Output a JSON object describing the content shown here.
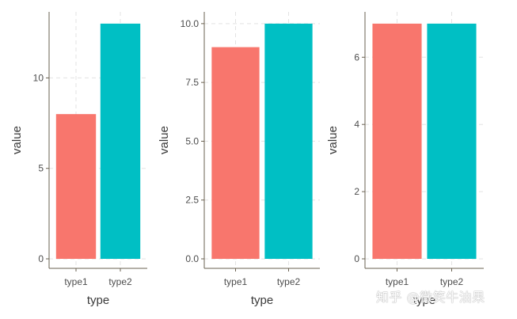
{
  "chart_data": [
    {
      "type": "bar",
      "categories": [
        "type1",
        "type2"
      ],
      "values": [
        8,
        13
      ],
      "colors": [
        "#f8766d",
        "#00bfc4"
      ],
      "xlabel": "type",
      "ylabel": "value",
      "ylim": [
        0,
        13.65
      ],
      "yticks": [
        0,
        5,
        10
      ],
      "ytick_labels": [
        "0",
        "5",
        "10"
      ],
      "grid": "dashed major x and y"
    },
    {
      "type": "bar",
      "categories": [
        "type1",
        "type2"
      ],
      "values": [
        9,
        10
      ],
      "colors": [
        "#f8766d",
        "#00bfc4"
      ],
      "xlabel": "type",
      "ylabel": "value",
      "ylim": [
        0,
        10.5
      ],
      "yticks": [
        0,
        2.5,
        5,
        7.5,
        10
      ],
      "ytick_labels": [
        "0.0",
        "2.5",
        "5.0",
        "7.5",
        "10.0"
      ],
      "grid": "dashed major x and y"
    },
    {
      "type": "bar",
      "categories": [
        "type1",
        "type2"
      ],
      "values": [
        7,
        7
      ],
      "colors": [
        "#f8766d",
        "#00bfc4"
      ],
      "xlabel": "type",
      "ylabel": "value",
      "ylim": [
        0,
        7.35
      ],
      "yticks": [
        0,
        2,
        4,
        6
      ],
      "ytick_labels": [
        "0",
        "2",
        "4",
        "6"
      ],
      "grid": "dashed major x and y"
    }
  ],
  "watermark": "知乎 @微笑牛油果"
}
